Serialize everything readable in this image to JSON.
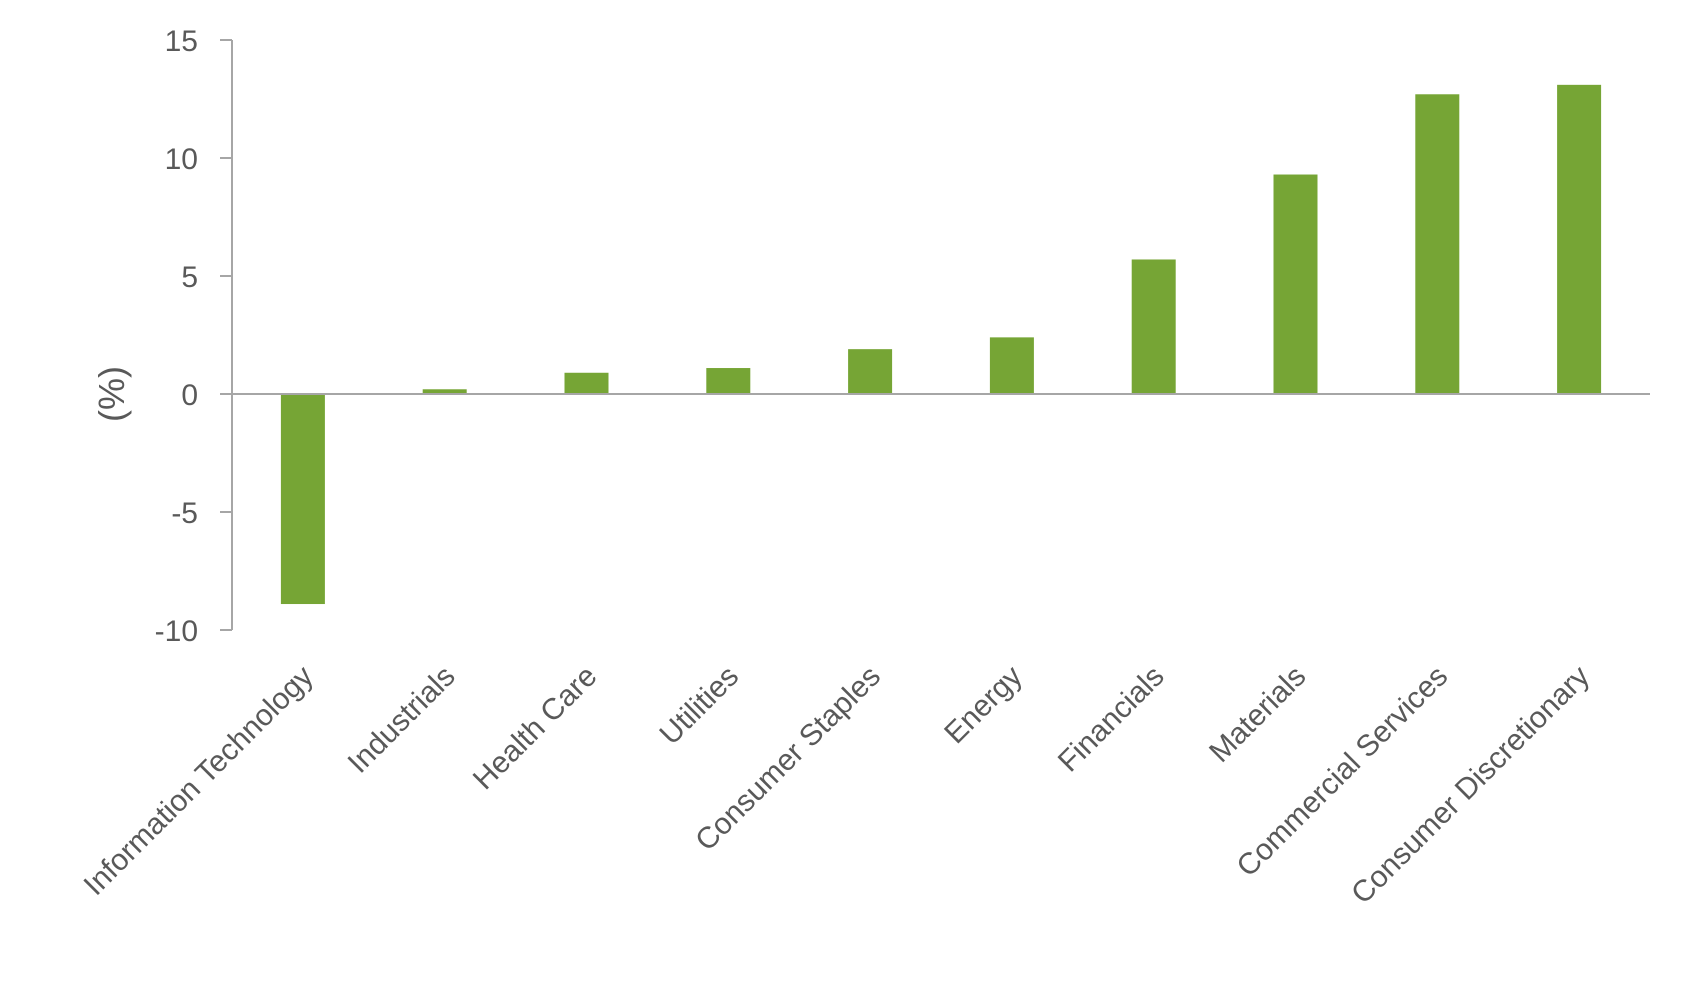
{
  "chart_data": {
    "type": "bar",
    "title": "",
    "xlabel": "",
    "ylabel": "(%)",
    "ylim": [
      -10,
      15
    ],
    "yticks": [
      15,
      10,
      5,
      0,
      -5,
      -10
    ],
    "grid": false,
    "legend": "none",
    "bar_color": "#76a535",
    "categories": [
      "Information Technology",
      "Industrials",
      "Health Care",
      "Utilities",
      "Consumer Staples",
      "Energy",
      "Financials",
      "Materials",
      "Commercial Services",
      "Consumer Discretionary"
    ],
    "values": [
      -8.9,
      0.2,
      0.9,
      1.1,
      1.9,
      2.4,
      5.7,
      9.3,
      12.7,
      13.1
    ]
  }
}
